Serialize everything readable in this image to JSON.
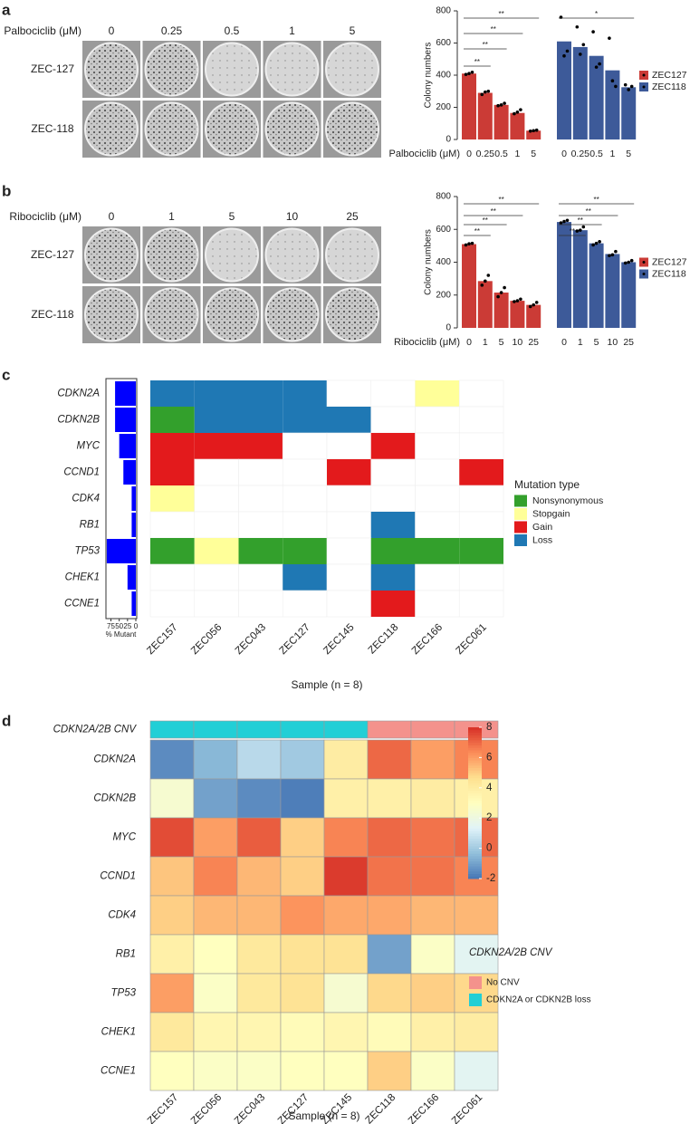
{
  "panel_labels": [
    "a",
    "b",
    "c",
    "d"
  ],
  "photo_panels": [
    {
      "drug_label": "Palbociclib (μM)",
      "doses": [
        "0",
        "0.25",
        "0.5",
        "1",
        "5"
      ],
      "rows": [
        "ZEC-127",
        "ZEC-118"
      ]
    },
    {
      "drug_label": "Ribociclib (μM)",
      "doses": [
        "0",
        "1",
        "5",
        "10",
        "25"
      ],
      "rows": [
        "ZEC-127",
        "ZEC-118"
      ]
    }
  ],
  "chart_data": [
    {
      "type": "bar",
      "ylabel": "Colony numbers",
      "xlabel": "Palbociclib (μM)",
      "categories": [
        "0",
        "0.25",
        "0.5",
        "1",
        "5"
      ],
      "ylim": [
        0,
        800
      ],
      "yticks": [
        0,
        200,
        400,
        600,
        800
      ],
      "series": [
        {
          "name": "ZEC127",
          "color": "#cb3b36",
          "values": [
            410,
            290,
            215,
            165,
            55
          ],
          "points": [
            [
              405,
              410,
              418
            ],
            [
              280,
              295,
              300
            ],
            [
              210,
              215,
              225
            ],
            [
              160,
              170,
              185
            ],
            [
              52,
              55,
              58
            ]
          ]
        },
        {
          "name": "ZEC118",
          "color": "#3d5a99",
          "values": [
            610,
            575,
            520,
            430,
            325
          ],
          "points": [
            [
              760,
              520,
              550
            ],
            [
              700,
              530,
              590
            ],
            [
              670,
              450,
              470
            ],
            [
              630,
              365,
              330
            ],
            [
              340,
              310,
              330
            ]
          ]
        }
      ],
      "significance": [
        "**",
        "**",
        "**",
        "**",
        "*"
      ]
    },
    {
      "type": "bar",
      "ylabel": "Colony numbers",
      "xlabel": "Ribociclib (μM)",
      "categories": [
        "0",
        "1",
        "5",
        "10",
        "25"
      ],
      "ylim": [
        0,
        800
      ],
      "yticks": [
        0,
        200,
        400,
        600,
        800
      ],
      "series": [
        {
          "name": "ZEC127",
          "color": "#cb3b36",
          "values": [
            510,
            285,
            215,
            165,
            140
          ],
          "points": [
            [
              505,
              512,
              515
            ],
            [
              260,
              285,
              320
            ],
            [
              190,
              215,
              245
            ],
            [
              160,
              165,
              175
            ],
            [
              130,
              140,
              155
            ]
          ]
        },
        {
          "name": "ZEC118",
          "color": "#3d5a99",
          "values": [
            645,
            595,
            515,
            450,
            400
          ],
          "points": [
            [
              640,
              648,
              655
            ],
            [
              590,
              595,
              615
            ],
            [
              505,
              515,
              525
            ],
            [
              440,
              445,
              465
            ],
            [
              395,
              400,
              410
            ]
          ]
        }
      ],
      "significance": [
        "**",
        "**",
        "**",
        "**",
        "**",
        "**",
        "**",
        "**"
      ]
    },
    {
      "type": "oncoprint",
      "xlabel": "Sample (n = 8)",
      "genes": [
        "CDKN2A",
        "CDKN2B",
        "MYC",
        "CCND1",
        "CDK4",
        "RB1",
        "TP53",
        "CHEK1",
        "CCNE1"
      ],
      "samples": [
        "ZEC157",
        "ZEC056",
        "ZEC043",
        "ZEC127",
        "ZEC145",
        "ZEC118",
        "ZEC166",
        "ZEC061"
      ],
      "mutations": [
        [
          "Loss",
          "Loss",
          "Loss",
          "Loss",
          null,
          null,
          "Stopgain",
          null
        ],
        [
          "Nonsynonymous",
          "Loss",
          "Loss",
          "Loss",
          "Loss",
          null,
          null,
          null
        ],
        [
          "Gain",
          "Gain",
          "Gain",
          null,
          null,
          "Gain",
          null,
          null
        ],
        [
          "Gain",
          null,
          null,
          null,
          "Gain",
          null,
          null,
          "Gain"
        ],
        [
          "Stopgain",
          null,
          null,
          null,
          null,
          null,
          null,
          null
        ],
        [
          null,
          null,
          null,
          null,
          null,
          "Loss",
          null,
          null
        ],
        [
          "Nonsynonymous",
          "Stopgain",
          "Nonsynonymous",
          "Nonsynonymous",
          null,
          "Nonsynonymous",
          "Nonsynonymous",
          "Nonsynonymous"
        ],
        [
          null,
          null,
          null,
          "Loss",
          null,
          "Loss",
          null,
          null
        ],
        [
          null,
          null,
          null,
          null,
          null,
          "Gain",
          null,
          null
        ]
      ],
      "legend_title": "Mutation type",
      "mutation_types": [
        {
          "name": "Nonsynonymous",
          "color": "#33a02c"
        },
        {
          "name": "Stopgain",
          "color": "#ffff99"
        },
        {
          "name": "Gain",
          "color": "#e31a1c"
        },
        {
          "name": "Loss",
          "color": "#1f78b4"
        }
      ],
      "mutant_percent": {
        "values": [
          62.5,
          62.5,
          50,
          37.5,
          12.5,
          12.5,
          87.5,
          25,
          12.5
        ],
        "color": "#0000ff",
        "xlim": [
          0,
          90
        ],
        "xticks": [
          75,
          50,
          25,
          0
        ],
        "xlabel": "% Mutant"
      }
    },
    {
      "type": "heatmap",
      "xlabel": "Sample (n = 8)",
      "genes": [
        "CDKN2A",
        "CDKN2B",
        "MYC",
        "CCND1",
        "CDK4",
        "RB1",
        "TP53",
        "CHEK1",
        "CCNE1"
      ],
      "samples": [
        "ZEC157",
        "ZEC056",
        "ZEC043",
        "ZEC127",
        "ZEC145",
        "ZEC118",
        "ZEC166",
        "ZEC061"
      ],
      "values": [
        [
          -1.5,
          -0.5,
          0.5,
          0,
          4,
          7,
          6,
          6.5
        ],
        [
          2.5,
          -1,
          -1.5,
          -1.8,
          3.8,
          3.8,
          4,
          3.8
        ],
        [
          7.5,
          6,
          7.2,
          5,
          6.5,
          7,
          6.8,
          7
        ],
        [
          5.2,
          6.5,
          5.5,
          5,
          7.8,
          6.8,
          6.8,
          6.5
        ],
        [
          5,
          5.5,
          5.5,
          6.2,
          5.8,
          5.8,
          5.5,
          5.5
        ],
        [
          3.8,
          3,
          4.2,
          4.5,
          4.5,
          -1,
          2.8,
          1.5
        ],
        [
          6,
          2.8,
          4.2,
          4.5,
          2.5,
          4.8,
          5,
          4.8
        ],
        [
          4.2,
          3.5,
          3.5,
          3.2,
          3.5,
          3.2,
          3.8,
          4
        ],
        [
          3,
          2.8,
          2.8,
          3,
          3,
          5,
          2.8,
          1.5
        ]
      ],
      "clim": [
        -2,
        8
      ],
      "cticks": [
        -2,
        0,
        2,
        4,
        6,
        8
      ],
      "palette": [
        "#4575b4",
        "#91bfdb",
        "#e0f3f8",
        "#ffffbf",
        "#fee090",
        "#fc8d59",
        "#d73027"
      ],
      "annotation": {
        "label": "CDKN2A/2B CNV",
        "legend_title": "CDKN2A/2B CNV",
        "values": [
          "CDKN2A or CDKN2B loss",
          "CDKN2A or CDKN2B loss",
          "CDKN2A or CDKN2B loss",
          "CDKN2A or CDKN2B loss",
          "CDKN2A or CDKN2B loss",
          "No CNV",
          "No CNV",
          "No CNV"
        ],
        "levels": [
          {
            "name": "No CNV",
            "color": "#f4928c"
          },
          {
            "name": "CDKN2A or CDKN2B loss",
            "color": "#22cfd6"
          }
        ]
      }
    }
  ]
}
